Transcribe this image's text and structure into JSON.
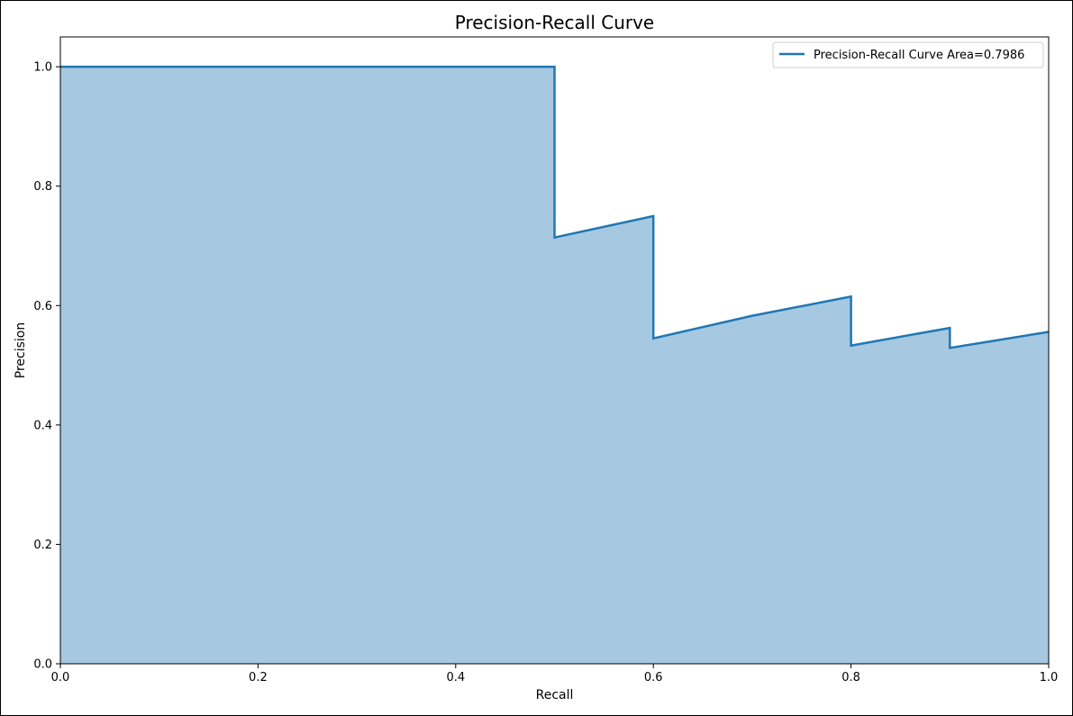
{
  "chart_data": {
    "type": "area",
    "title": "Precision-Recall Curve",
    "xlabel": "Recall",
    "ylabel": "Precision",
    "xlim": [
      0.0,
      1.0
    ],
    "ylim": [
      0.0,
      1.05
    ],
    "grid": false,
    "legend_placement": "top-right",
    "x_ticks": [
      0.0,
      0.2,
      0.4,
      0.6,
      0.8,
      1.0
    ],
    "x_tick_labels": [
      "0.0",
      "0.2",
      "0.4",
      "0.6",
      "0.8",
      "1.0"
    ],
    "y_ticks": [
      0.0,
      0.2,
      0.4,
      0.6,
      0.8,
      1.0
    ],
    "y_tick_labels": [
      "0.0",
      "0.2",
      "0.4",
      "0.6",
      "0.8",
      "1.0"
    ],
    "series": [
      {
        "name": "Precision-Recall Curve Area=0.7986",
        "x": [
          0.0,
          0.5,
          0.5,
          0.6,
          0.6,
          0.7,
          0.8,
          0.8,
          0.9,
          0.9,
          1.0
        ],
        "y": [
          1.0,
          1.0,
          0.714,
          0.75,
          0.545,
          0.583,
          0.615,
          0.533,
          0.5625,
          0.529,
          0.556
        ]
      }
    ],
    "colors": {
      "line": "#1f77b4",
      "fill": "#a6c8e1"
    }
  }
}
